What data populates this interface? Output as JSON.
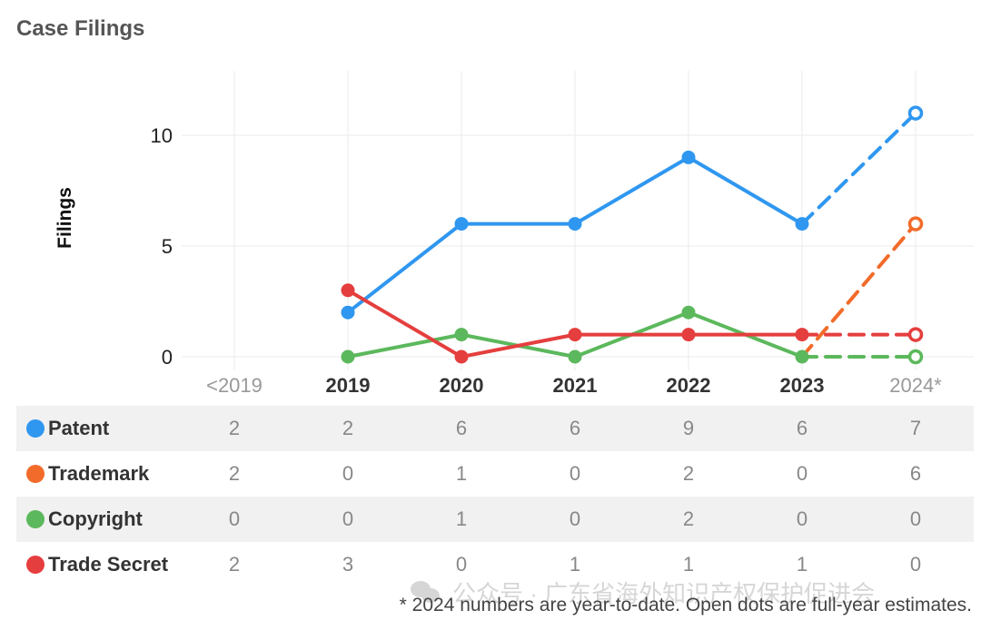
{
  "chart_data": {
    "type": "line",
    "title": "Case Filings",
    "ylabel": "Filings",
    "xlabel": "",
    "categories": [
      "<2019",
      "2019",
      "2020",
      "2021",
      "2022",
      "2023",
      "2024*"
    ],
    "ylim": [
      -0.5,
      13
    ],
    "yticks": [
      0,
      5,
      10
    ],
    "grid": true,
    "series": [
      {
        "name": "Patent",
        "color": "#2f97f0",
        "table": [
          2,
          2,
          6,
          6,
          9,
          6,
          7
        ],
        "plot": [
          null,
          2,
          6,
          6,
          9,
          6,
          11
        ]
      },
      {
        "name": "Trademark",
        "color": "#f26b2a",
        "table": [
          2,
          0,
          1,
          0,
          2,
          0,
          6
        ],
        "plot": [
          null,
          null,
          null,
          null,
          null,
          0,
          6
        ]
      },
      {
        "name": "Copyright",
        "color": "#5cb85c",
        "table": [
          0,
          0,
          1,
          0,
          2,
          0,
          0
        ],
        "plot": [
          null,
          0,
          1,
          0,
          2,
          0,
          0
        ]
      },
      {
        "name": "Trade Secret",
        "color": "#e53e3e",
        "table": [
          2,
          3,
          0,
          1,
          1,
          1,
          0
        ],
        "plot": [
          null,
          3,
          0,
          1,
          1,
          1,
          1
        ]
      }
    ],
    "estimate_index": 6,
    "footnote": "* 2024 numbers are year-to-date. Open dots are full-year estimates."
  },
  "watermark": "公众号 · 广东省海外知识产权保护促进会"
}
